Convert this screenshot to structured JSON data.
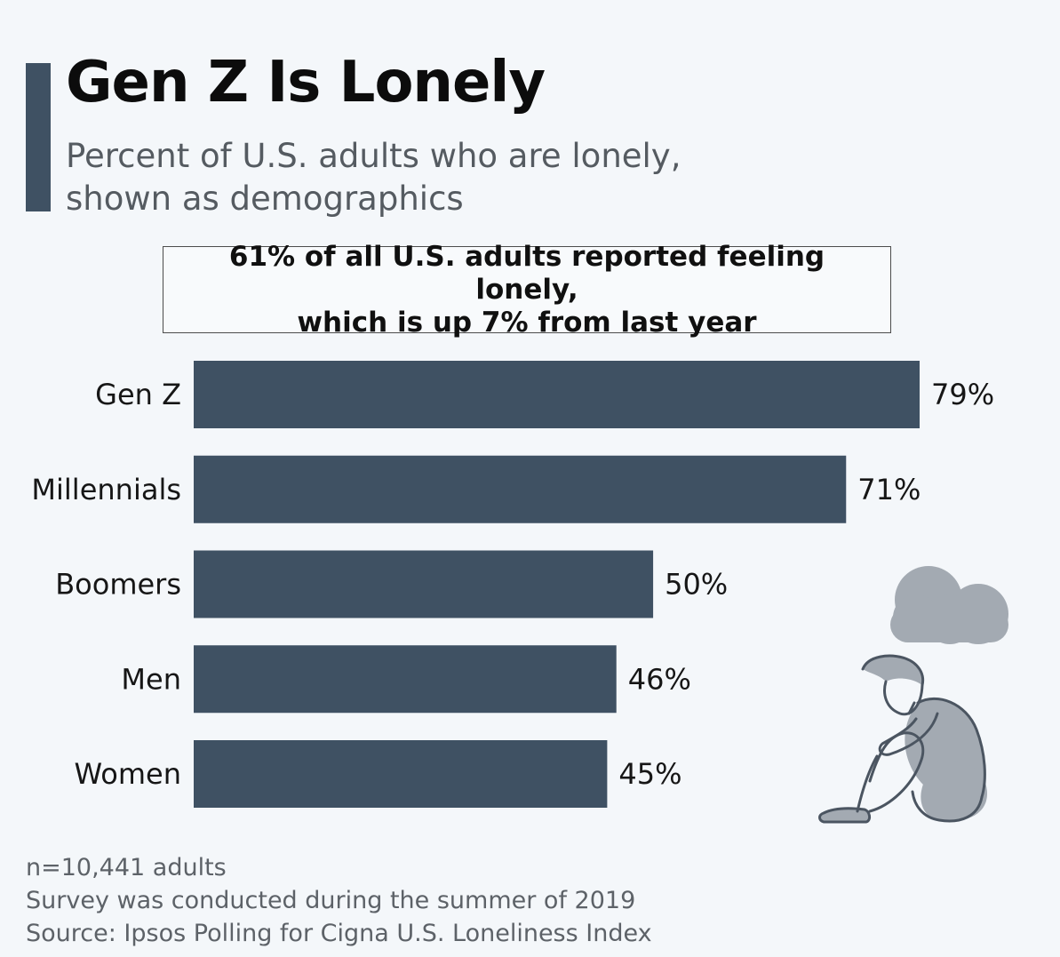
{
  "title": "Gen Z Is Lonely",
  "subtitle_line1": "Percent of U.S. adults who are lonely,",
  "subtitle_line2": "shown as demographics",
  "callout_line1": "61% of all U.S. adults reported feeling lonely,",
  "callout_line2": "which is up 7% from last year",
  "footnotes": [
    "n=10,441 adults",
    "Survey was conducted during the summer of 2019",
    "Source: Ipsos Polling for Cigna U.S. Loneliness Index"
  ],
  "colors": {
    "bar": "#3f5163",
    "illustration": "#a3aab2",
    "text": "#111111"
  },
  "chart_data": {
    "type": "bar",
    "orientation": "horizontal",
    "title": "Gen Z Is Lonely",
    "categories": [
      "Gen Z",
      "Millennials",
      "Boomers",
      "Men",
      "Women"
    ],
    "values": [
      79,
      71,
      50,
      46,
      45
    ],
    "value_labels": [
      "79%",
      "71%",
      "50%",
      "46%",
      "45%"
    ],
    "unit": "%",
    "xlim": [
      0,
      79
    ],
    "grid": false,
    "legend": "none"
  }
}
